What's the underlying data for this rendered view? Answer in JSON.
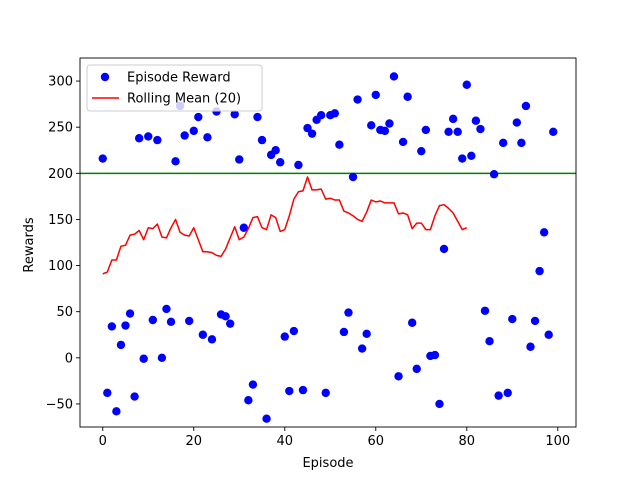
{
  "chart_data": {
    "type": "scatter",
    "title": "",
    "xlabel": "Episode",
    "ylabel": "Rewards",
    "xlim": [
      -5,
      104
    ],
    "ylim": [
      -75,
      325
    ],
    "xticks": [
      0,
      20,
      40,
      60,
      80,
      100
    ],
    "yticks": [
      -50,
      0,
      50,
      100,
      150,
      200,
      250,
      300
    ],
    "grid": false,
    "legend_position": "top-left",
    "threshold": {
      "y": 200,
      "color": "#008000"
    },
    "series": [
      {
        "name": "Episode Reward",
        "kind": "points",
        "color": "#0000ff",
        "x": [
          0,
          1,
          2,
          3,
          4,
          5,
          6,
          7,
          8,
          9,
          10,
          11,
          12,
          13,
          14,
          15,
          16,
          17,
          18,
          19,
          20,
          21,
          22,
          23,
          24,
          25,
          26,
          27,
          28,
          29,
          30,
          31,
          32,
          33,
          34,
          35,
          36,
          37,
          38,
          39,
          40,
          41,
          42,
          43,
          44,
          45,
          46,
          47,
          48,
          49,
          50,
          51,
          52,
          53,
          54,
          55,
          56,
          57,
          58,
          59,
          60,
          61,
          62,
          63,
          64,
          65,
          66,
          67,
          68,
          69,
          70,
          71,
          72,
          73,
          74,
          75,
          76,
          77,
          78,
          79,
          80,
          81,
          82,
          83,
          84,
          85,
          86,
          87,
          88,
          89,
          90,
          91,
          92,
          93,
          94,
          95,
          96,
          97,
          98,
          99
        ],
        "y": [
          216,
          -38,
          34,
          -58,
          14,
          35,
          48,
          -42,
          238,
          -1,
          240,
          41,
          236,
          0,
          53,
          39,
          213,
          273,
          241,
          40,
          246,
          261,
          25,
          239,
          20,
          267,
          47,
          45,
          37,
          264,
          215,
          141,
          -46,
          -29,
          261,
          236,
          -66,
          220,
          225,
          212,
          23,
          -36,
          29,
          209,
          -35,
          249,
          243,
          258,
          263,
          -38,
          263,
          265,
          231,
          28,
          49,
          196,
          280,
          10,
          26,
          252,
          285,
          247,
          246,
          254,
          305,
          -20,
          234,
          283,
          38,
          -12,
          224,
          247,
          2,
          3,
          -50,
          118,
          245,
          259,
          245,
          216,
          296,
          219,
          257,
          248,
          51,
          18,
          199,
          -41,
          233,
          -38,
          42,
          255,
          233,
          273,
          12,
          40,
          94,
          136,
          25,
          245
        ]
      },
      {
        "name": "Rolling Mean (20)",
        "kind": "line",
        "color": "#ff0000",
        "x": [
          0,
          1,
          2,
          3,
          4,
          5,
          6,
          7,
          8,
          9,
          10,
          11,
          12,
          13,
          14,
          15,
          16,
          17,
          18,
          19,
          20,
          21,
          22,
          23,
          24,
          25,
          26,
          27,
          28,
          29,
          30,
          31,
          32,
          33,
          34,
          35,
          36,
          37,
          38,
          39,
          40,
          41,
          42,
          43,
          44,
          45,
          46,
          47,
          48,
          49,
          50,
          51,
          52,
          53,
          54,
          55,
          56,
          57,
          58,
          59,
          60,
          61,
          62,
          63,
          64,
          65,
          66,
          67,
          68,
          69,
          70,
          71,
          72,
          73,
          74,
          75,
          76,
          77,
          78,
          79,
          80
        ],
        "y": [
          91,
          93,
          106,
          106,
          121,
          122,
          133,
          134,
          138,
          128,
          141,
          140,
          145,
          131,
          130,
          141,
          150,
          136,
          133,
          132,
          141,
          128,
          115,
          115,
          114,
          111,
          110,
          118,
          130,
          142,
          128,
          131,
          140,
          152,
          153,
          141,
          139,
          155,
          152,
          137,
          139,
          154,
          172,
          180,
          181,
          196,
          182,
          182,
          183,
          172,
          173,
          171,
          171,
          159,
          157,
          154,
          150,
          148,
          158,
          171,
          169,
          170,
          168,
          168,
          168,
          156,
          157,
          155,
          140,
          146,
          146,
          139,
          139,
          154,
          165,
          166,
          162,
          157,
          148,
          139,
          141
        ]
      }
    ]
  }
}
